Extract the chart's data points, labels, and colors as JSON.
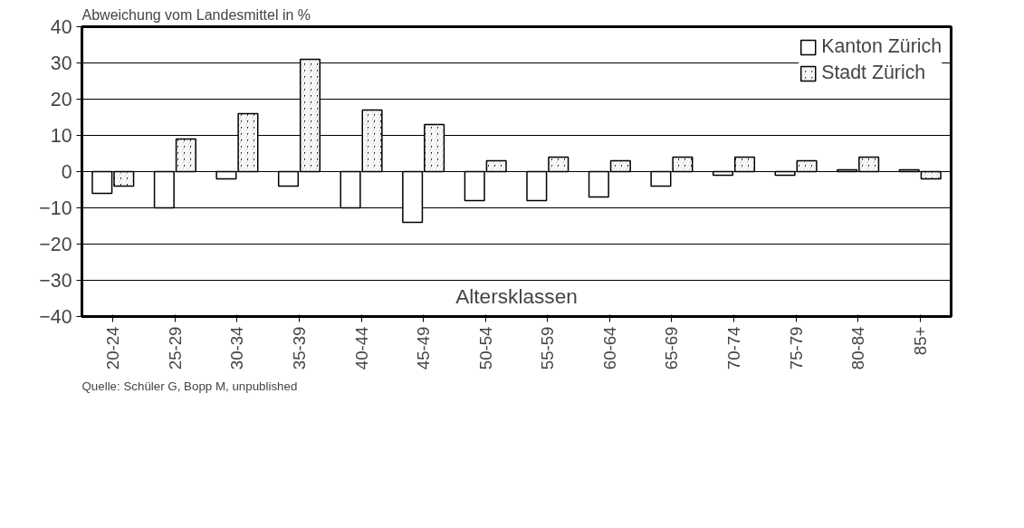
{
  "chart_data": {
    "type": "bar",
    "ylabel": "Abweichung vom Landesmittel in %",
    "xlabel": "Altersklassen",
    "categories": [
      "20-24",
      "25-29",
      "30-34",
      "35-39",
      "40-44",
      "45-49",
      "50-54",
      "55-59",
      "60-64",
      "65-69",
      "70-74",
      "75-79",
      "80-84",
      "85+"
    ],
    "series": [
      {
        "name": "Kanton Zürich",
        "color": "#ffffff",
        "values": [
          -6,
          -10,
          -2,
          -4,
          -10,
          -14,
          -8,
          -8,
          -7,
          -4,
          -1,
          -1,
          0.5,
          0.5
        ]
      },
      {
        "name": "Stadt Zürich",
        "color": "#000000",
        "values": [
          -4,
          9,
          16,
          31,
          17,
          13,
          3,
          4,
          3,
          4,
          4,
          3,
          4,
          -2
        ]
      }
    ],
    "ylim": [
      -40,
      40
    ],
    "yticks": [
      -40,
      -30,
      -20,
      -10,
      0,
      10,
      20,
      30,
      40
    ],
    "grid": "y",
    "legend": "top right",
    "annotations": [
      "Quelle: Schüler G, Bopp M, unpublished"
    ]
  }
}
